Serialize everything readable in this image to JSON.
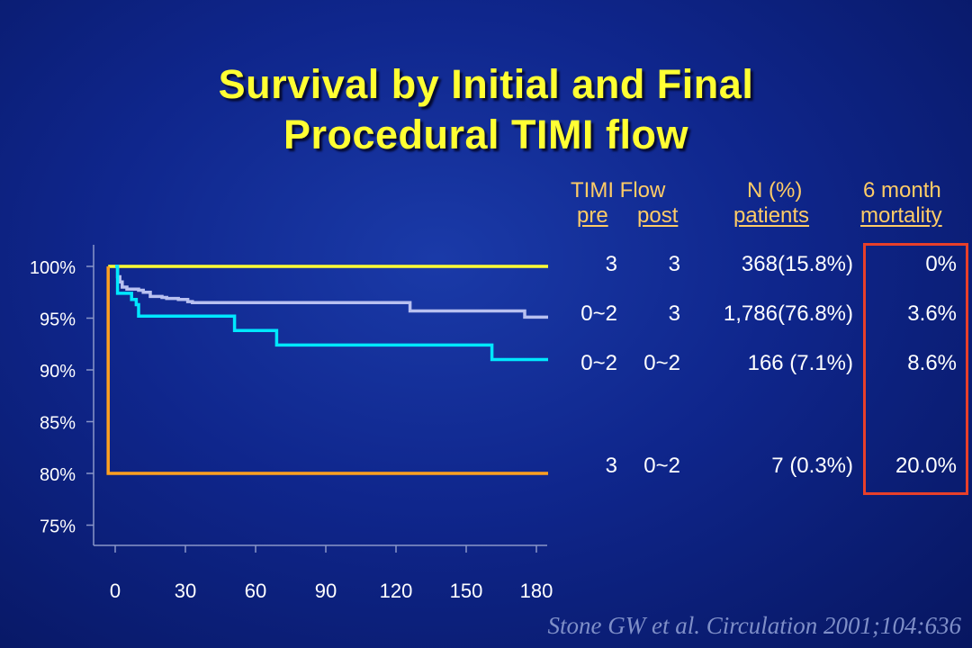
{
  "title": {
    "line1": "Survival by Initial and Final",
    "line2": "Procedural TIMI flow"
  },
  "table": {
    "headers": {
      "timi_flow": "TIMI Flow",
      "pre": "pre",
      "post": "post",
      "n_pct": "N (%)",
      "patients": "patients",
      "six_month": "6 month",
      "mortality": "mortality"
    },
    "rows": [
      {
        "pre": "3",
        "post": "3",
        "n": "368(15.8%)",
        "mortality": "0%"
      },
      {
        "pre": "0~2",
        "post": "3",
        "n": "1,786(76.8%)",
        "mortality": "3.6%"
      },
      {
        "pre": "0~2",
        "post": "0~2",
        "n": "166 (7.1%)",
        "mortality": "8.6%"
      },
      {
        "pre": "3",
        "post": "0~2",
        "n": "7 (0.3%)",
        "mortality": "20.0%"
      }
    ]
  },
  "citation": "Stone GW et al. Circulation 2001;104:636",
  "chart_data": {
    "type": "line",
    "step": true,
    "xlabel": "",
    "ylabel": "",
    "xlim": [
      -5,
      185
    ],
    "ylim": [
      72,
      102
    ],
    "x_ticks": [
      "0",
      "30",
      "60",
      "90",
      "120",
      "150",
      "180"
    ],
    "y_ticks": [
      "100%",
      "95%",
      "90%",
      "85%",
      "80%",
      "75%"
    ],
    "y_tick_values": [
      100,
      95,
      90,
      85,
      80,
      75
    ],
    "x_tick_values": [
      0,
      30,
      60,
      90,
      120,
      150,
      180
    ],
    "grid": false,
    "legend": "none",
    "series": [
      {
        "color": "#ffff33",
        "x": [
          -3,
          185
        ],
        "y": [
          100,
          100
        ]
      },
      {
        "color": "#b8c0f0",
        "x": [
          0,
          1,
          2,
          3,
          5,
          8,
          10,
          12,
          15,
          20,
          22,
          27,
          31,
          33,
          34,
          35,
          125,
          126,
          174,
          175,
          185
        ],
        "y": [
          100,
          99.0,
          98.5,
          98.0,
          97.8,
          97.8,
          97.7,
          97.5,
          97.1,
          97.0,
          96.9,
          96.8,
          96.6,
          96.5,
          96.5,
          96.5,
          96.5,
          95.7,
          95.7,
          95.1,
          95.1
        ]
      },
      {
        "color": "#00e8ff",
        "x": [
          0,
          1,
          5,
          7,
          9,
          10,
          50,
          51,
          68,
          69,
          160,
          161,
          185
        ],
        "y": [
          100,
          97.4,
          97.4,
          96.8,
          96.3,
          95.2,
          95.2,
          93.8,
          93.8,
          92.4,
          92.4,
          91.0,
          91.0
        ]
      },
      {
        "color": "#ffa020",
        "x": [
          -3,
          -3,
          185
        ],
        "y": [
          100,
          80,
          80
        ]
      }
    ]
  }
}
